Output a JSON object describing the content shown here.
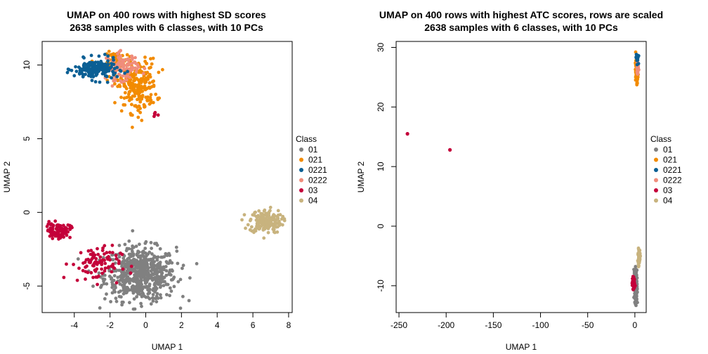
{
  "legend": {
    "title": "Class",
    "entries": [
      {
        "label": "01",
        "color": "#808080"
      },
      {
        "label": "021",
        "color": "#F28B00"
      },
      {
        "label": "0221",
        "color": "#0B5F94"
      },
      {
        "label": "0222",
        "color": "#F08D7C"
      },
      {
        "label": "03",
        "color": "#C4003A"
      },
      {
        "label": "04",
        "color": "#C8B37E"
      }
    ]
  },
  "chart_data": [
    {
      "type": "scatter",
      "title": "UMAP on 400 rows with highest SD scores",
      "subtitle": "2638 samples with 6 classes, with 10 PCs",
      "xlabel": "UMAP 1",
      "ylabel": "UMAP 2",
      "xlim": [
        -5.8,
        8.2
      ],
      "ylim": [
        -6.8,
        11.6
      ],
      "xticks": [
        -4,
        -2,
        0,
        2,
        4,
        6,
        8
      ],
      "yticks": [
        -5,
        0,
        5,
        10
      ],
      "clusters": [
        {
          "class": "0221",
          "cx": -2.8,
          "cy": 9.7,
          "sx": 0.6,
          "sy": 0.35,
          "n": 180
        },
        {
          "class": "0222",
          "cx": -1.3,
          "cy": 9.9,
          "sx": 0.45,
          "sy": 0.45,
          "n": 100
        },
        {
          "class": "021",
          "cx": -0.5,
          "cy": 8.6,
          "sx": 0.55,
          "sy": 0.9,
          "n": 230
        },
        {
          "class": "021",
          "cx": -1.5,
          "cy": 10.2,
          "sx": 0.4,
          "sy": 0.35,
          "n": 60
        },
        {
          "class": "03",
          "cx": 0.45,
          "cy": 6.6,
          "sx": 0.12,
          "sy": 0.2,
          "n": 5
        },
        {
          "class": "04",
          "cx": 6.7,
          "cy": -0.6,
          "sx": 0.45,
          "sy": 0.4,
          "n": 170
        },
        {
          "class": "03",
          "cx": -4.9,
          "cy": -1.25,
          "sx": 0.35,
          "sy": 0.25,
          "n": 90
        },
        {
          "class": "03",
          "cx": -2.8,
          "cy": -3.5,
          "sx": 0.7,
          "sy": 0.6,
          "n": 90
        },
        {
          "class": "01",
          "cx": -0.3,
          "cy": -4.2,
          "sx": 1.0,
          "sy": 0.9,
          "n": 620
        }
      ]
    },
    {
      "type": "scatter",
      "title": "UMAP on 400 rows with highest ATC scores, rows are scaled",
      "subtitle": "2638 samples with 6 classes, with 10 PCs",
      "xlabel": "UMAP 1",
      "ylabel": "UMAP 2",
      "xlim": [
        -253,
        12
      ],
      "ylim": [
        -14.5,
        31
      ],
      "xticks": [
        -250,
        -200,
        -150,
        -100,
        -50,
        0
      ],
      "yticks": [
        -10,
        0,
        10,
        20,
        30
      ],
      "clusters": [
        {
          "class": "021",
          "cx": 2,
          "cy": 26,
          "sx": 0.6,
          "sy": 0.9,
          "n": 140
        },
        {
          "class": "0221",
          "cx": 2.5,
          "cy": 28.3,
          "sx": 0.6,
          "sy": 0.4,
          "n": 40
        },
        {
          "class": "0222",
          "cx": 3,
          "cy": 26.5,
          "sx": 0.4,
          "sy": 0.6,
          "n": 25
        },
        {
          "class": "04",
          "cx": 4.5,
          "cy": -5.0,
          "sx": 0.5,
          "sy": 0.6,
          "n": 110
        },
        {
          "class": "01",
          "cx": 1.0,
          "cy": -10.0,
          "sx": 0.6,
          "sy": 1.3,
          "n": 330
        },
        {
          "class": "03",
          "cx": -1.5,
          "cy": -9.5,
          "sx": 0.6,
          "sy": 0.5,
          "n": 90
        }
      ],
      "points": [
        {
          "class": "03",
          "x": -241,
          "y": 15.5
        },
        {
          "class": "03",
          "x": -196,
          "y": 12.8
        }
      ]
    }
  ]
}
